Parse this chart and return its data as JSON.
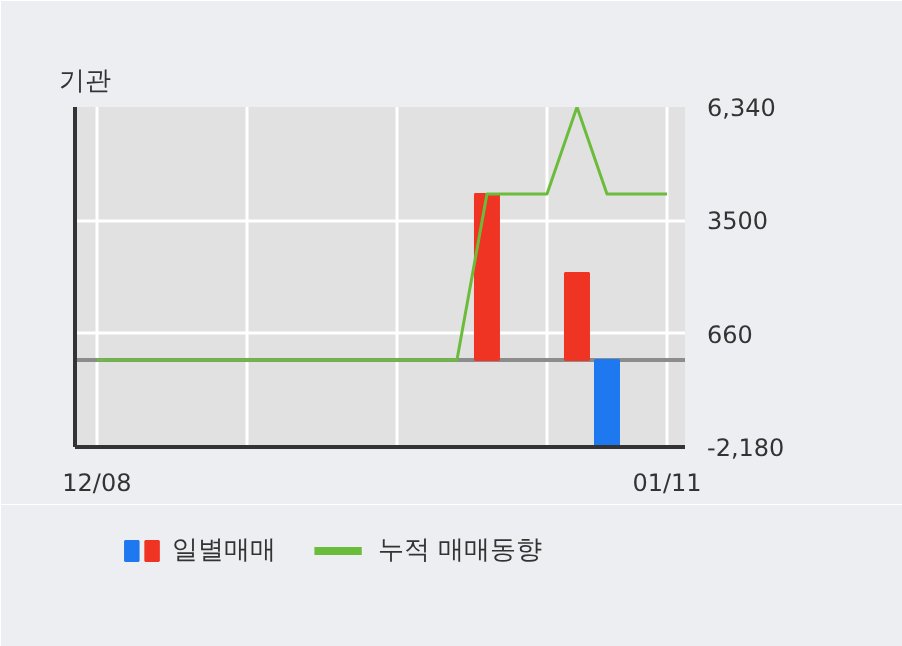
{
  "chart_data": {
    "type": "bar",
    "title": "기관",
    "categories": [
      "12/08",
      null,
      null,
      null,
      null,
      null,
      null,
      null,
      null,
      null,
      null,
      null,
      null,
      null,
      null,
      null,
      null,
      null,
      null,
      "01/11"
    ],
    "series": [
      {
        "name": "일별매매",
        "colors": [
          null,
          null,
          null,
          null,
          null,
          null,
          null,
          null,
          null,
          null,
          null,
          null,
          null,
          "#f03424",
          null,
          null,
          "#f03424",
          "#1e78f0",
          null,
          null
        ],
        "values": [
          0,
          0,
          0,
          0,
          0,
          0,
          0,
          0,
          0,
          0,
          0,
          0,
          0,
          4160,
          0,
          0,
          2180,
          -2180,
          0,
          0
        ]
      },
      {
        "name": "누적 매매동향",
        "type": "line",
        "color": "#6cbc3c",
        "values": [
          0,
          0,
          0,
          0,
          0,
          0,
          0,
          0,
          0,
          0,
          0,
          0,
          0,
          4160,
          4160,
          4160,
          6340,
          4160,
          4160,
          4160
        ]
      }
    ],
    "ylim": [
      -2180,
      6340
    ],
    "yticks": [
      {
        "value": 6340,
        "label": "6,340"
      },
      3500,
      660,
      {
        "value": -2180,
        "label": "-2,180"
      }
    ],
    "ref_lines": [
      {
        "axis": "y",
        "value": 0,
        "color": "#8c8c8c"
      }
    ],
    "grid": true,
    "legend": "bottom",
    "marker": "none",
    "line_style": "solid"
  }
}
